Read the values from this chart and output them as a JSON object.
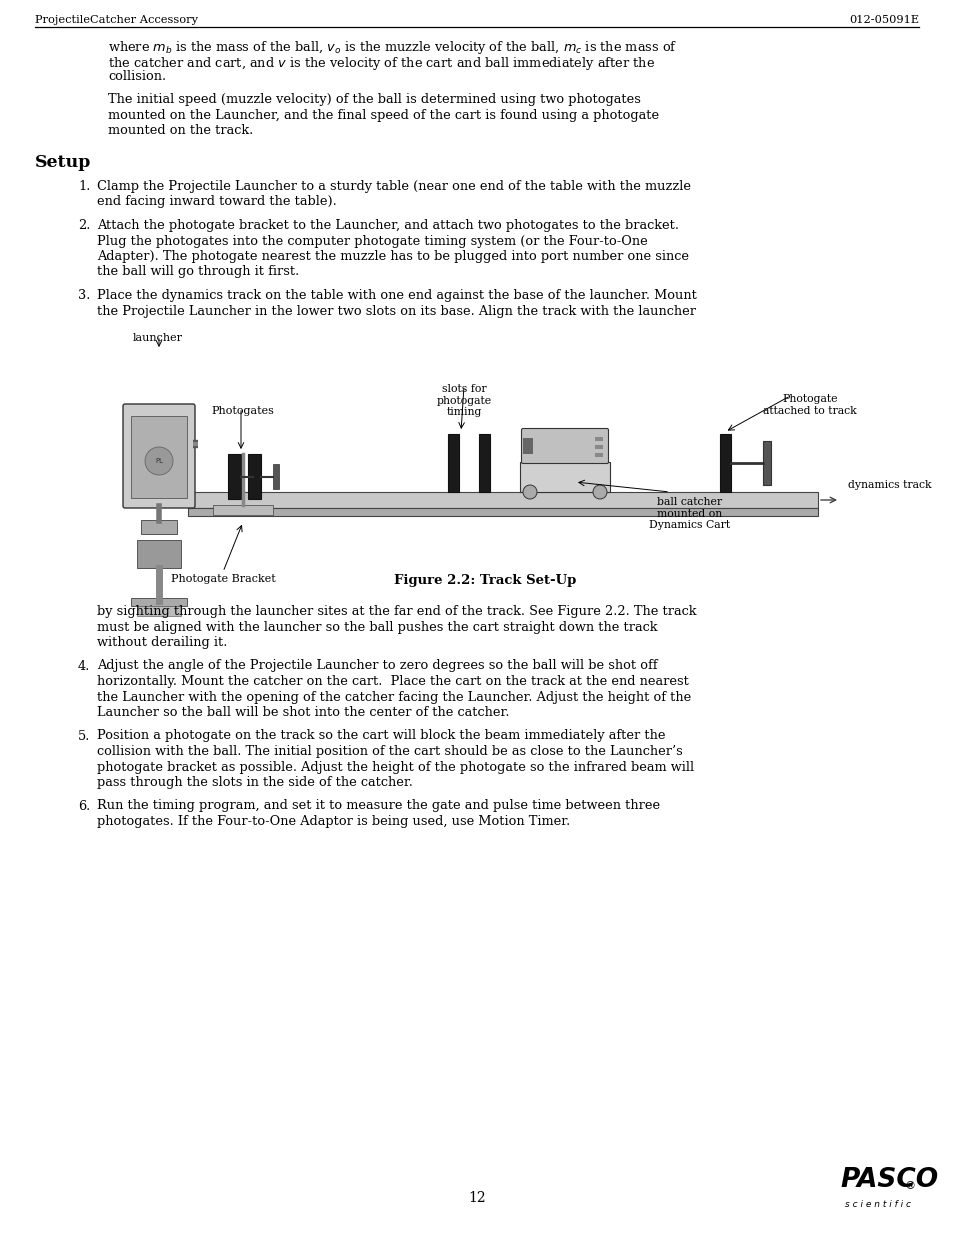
{
  "header_left": "ProjectileCatcher Accessory",
  "header_right": "012-05091E",
  "page_number": "12",
  "bg_color": "#ffffff",
  "section_title": "Setup",
  "figure_caption": "Figure 2.2: Track Set-Up",
  "label_launcher": "launcher",
  "label_photogates": "Photogates",
  "label_slots": "slots for\nphotogate\ntiming",
  "label_photogate_track": "Photogate\nattached to track",
  "label_dynamics_track": "dynamics track",
  "label_bracket": "Photogate Bracket",
  "label_ball_catcher": "ball catcher\nmounted on\nDynamics Cart",
  "para2_lines": [
    "The initial speed (muzzle velocity) of the ball is determined using two photogates",
    "mounted on the Launcher, and the final speed of the cart is found using a photogate",
    "mounted on the track."
  ],
  "item1_lines": [
    "Clamp the Projectile Launcher to a sturdy table (near one end of the table with the muzzle",
    "end facing inward toward the table)."
  ],
  "item2_lines": [
    "Attach the photogate bracket to the Launcher, and attach two photogates to the bracket.",
    "Plug the photogates into the computer photogate timing system (or the Four-to-One",
    "Adapter). The photogate nearest the muzzle has to be plugged into port number one since",
    "the ball will go through it first."
  ],
  "item3_lines": [
    "Place the dynamics track on the table with one end against the base of the launcher. Mount",
    "the Projectile Launcher in the lower two slots on its base. Align the track with the launcher"
  ],
  "para_after_fig_lines": [
    "by sighting through the launcher sites at the far end of the track. See Figure 2.2. The track",
    "must be aligned with the launcher so the ball pushes the cart straight down the track",
    "without derailing it."
  ],
  "item4_lines": [
    "Adjust the angle of the Projectile Launcher to zero degrees so the ball will be shot off",
    "horizontally. Mount the catcher on the cart.  Place the cart on the track at the end nearest",
    "the Launcher with the opening of the catcher facing the Launcher. Adjust the height of the",
    "Launcher so the ball will be shot into the center of the catcher."
  ],
  "item5_lines": [
    "Position a photogate on the track so the cart will block the beam immediately after the",
    "collision with the ball. The initial position of the cart should be as close to the Launcher’s",
    "photogate bracket as possible. Adjust the height of the photogate so the infrared beam will",
    "pass through the slots in the side of the catcher."
  ],
  "item6_lines": [
    "Run the timing program, and set it to measure the gate and pulse time between three",
    "photogates. If the Four-to-One Adaptor is being used, use Motion Timer."
  ]
}
